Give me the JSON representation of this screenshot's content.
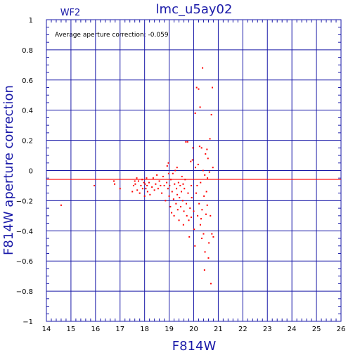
{
  "chart_data": {
    "type": "scatter",
    "title": "lmc_u5ay02",
    "chip_label": "WF2",
    "annotation": "Average aperture correction: -0.059",
    "xlabel": "F814W",
    "ylabel": "F814W aperture correction",
    "xlim": [
      14,
      26
    ],
    "ylim": [
      -1,
      1
    ],
    "x_ticks": [
      "14",
      "15",
      "16",
      "17",
      "18",
      "19",
      "20",
      "21",
      "22",
      "23",
      "24",
      "25",
      "26"
    ],
    "y_ticks": [
      "1",
      "0.8",
      "0.6",
      "0.4",
      "0.2",
      "0",
      "−0.2",
      "−0.4",
      "−0.6",
      "−0.8",
      "−1"
    ],
    "grid": true,
    "reference_line": -0.059,
    "colors": {
      "axes": "#1a1aa8",
      "points": "#ff0000",
      "reference": "#ff0000"
    },
    "points": [
      [
        14.6,
        -0.23
      ],
      [
        15.95,
        -0.1
      ],
      [
        16.75,
        -0.07
      ],
      [
        16.78,
        -0.09
      ],
      [
        17.0,
        -0.12
      ],
      [
        17.5,
        -0.14
      ],
      [
        17.55,
        -0.1
      ],
      [
        17.6,
        -0.07
      ],
      [
        17.62,
        -0.09
      ],
      [
        17.68,
        -0.05
      ],
      [
        17.7,
        -0.13
      ],
      [
        17.75,
        -0.07
      ],
      [
        17.8,
        -0.15
      ],
      [
        17.85,
        -0.1
      ],
      [
        17.9,
        -0.06
      ],
      [
        17.92,
        -0.12
      ],
      [
        17.97,
        -0.08
      ],
      [
        18.0,
        -0.17
      ],
      [
        18.02,
        -0.09
      ],
      [
        18.05,
        -0.12
      ],
      [
        18.08,
        -0.05
      ],
      [
        18.1,
        -0.1
      ],
      [
        18.12,
        -0.14
      ],
      [
        18.18,
        -0.08
      ],
      [
        18.22,
        -0.16
      ],
      [
        18.3,
        -0.11
      ],
      [
        18.35,
        -0.05
      ],
      [
        18.4,
        -0.13
      ],
      [
        18.45,
        -0.09
      ],
      [
        18.5,
        -0.03
      ],
      [
        18.55,
        -0.12
      ],
      [
        18.6,
        -0.07
      ],
      [
        18.65,
        -0.1
      ],
      [
        18.7,
        -0.15
      ],
      [
        18.75,
        -0.04
      ],
      [
        18.8,
        -0.1
      ],
      [
        18.85,
        -0.2
      ],
      [
        18.9,
        -0.08
      ],
      [
        18.92,
        0.03
      ],
      [
        18.95,
        -0.12
      ],
      [
        18.97,
        0.05
      ],
      [
        19.0,
        -0.17
      ],
      [
        19.02,
        -0.1
      ],
      [
        19.05,
        -0.24
      ],
      [
        19.07,
        -0.06
      ],
      [
        19.1,
        -0.28
      ],
      [
        19.12,
        -0.14
      ],
      [
        19.15,
        -0.02
      ],
      [
        19.18,
        -0.19
      ],
      [
        19.2,
        -0.3
      ],
      [
        19.22,
        -0.09
      ],
      [
        19.25,
        0.0
      ],
      [
        19.28,
        -0.22
      ],
      [
        19.3,
        -0.12
      ],
      [
        19.32,
        0.02
      ],
      [
        19.35,
        -0.26
      ],
      [
        19.38,
        -0.08
      ],
      [
        19.4,
        -0.33
      ],
      [
        19.42,
        -0.18
      ],
      [
        19.45,
        -0.1
      ],
      [
        19.47,
        -0.24
      ],
      [
        19.5,
        -0.14
      ],
      [
        19.52,
        -0.04
      ],
      [
        19.55,
        -0.2
      ],
      [
        19.6,
        -0.27
      ],
      [
        19.62,
        -0.12
      ],
      [
        19.65,
        -0.06
      ],
      [
        19.68,
        0.19
      ],
      [
        19.7,
        -0.22
      ],
      [
        19.72,
        -0.3
      ],
      [
        19.75,
        0.19
      ],
      [
        19.77,
        -0.15
      ],
      [
        19.8,
        -0.33
      ],
      [
        19.82,
        -0.44
      ],
      [
        19.85,
        -0.25
      ],
      [
        19.88,
        0.06
      ],
      [
        19.9,
        -0.1
      ],
      [
        19.92,
        -0.18
      ],
      [
        19.95,
        0.07
      ],
      [
        19.97,
        0.15
      ],
      [
        20.0,
        -0.27
      ],
      [
        20.02,
        -0.39
      ],
      [
        20.05,
        -0.5
      ],
      [
        20.07,
        0.02
      ],
      [
        20.1,
        -0.15
      ],
      [
        20.12,
        0.55
      ],
      [
        20.14,
        -0.1
      ],
      [
        20.16,
        -0.3
      ],
      [
        20.18,
        0.04
      ],
      [
        20.2,
        0.54
      ],
      [
        20.22,
        -0.22
      ],
      [
        20.24,
        0.16
      ],
      [
        20.26,
        0.42
      ],
      [
        20.28,
        -0.08
      ],
      [
        20.3,
        -0.32
      ],
      [
        20.32,
        0.15
      ],
      [
        20.34,
        -0.26
      ],
      [
        20.36,
        0.68
      ],
      [
        20.38,
        0.0
      ],
      [
        20.4,
        -0.42
      ],
      [
        20.42,
        -0.17
      ],
      [
        20.44,
        -0.66
      ],
      [
        20.46,
        -0.54
      ],
      [
        20.48,
        0.11
      ],
      [
        20.5,
        -0.29
      ],
      [
        20.52,
        -0.14
      ],
      [
        20.54,
        0.14
      ],
      [
        20.56,
        -0.05
      ],
      [
        20.58,
        0.08
      ],
      [
        20.6,
        -0.58
      ],
      [
        20.62,
        -0.48
      ],
      [
        20.64,
        -0.01
      ],
      [
        20.66,
        0.21
      ],
      [
        20.68,
        -0.3
      ],
      [
        20.7,
        -0.75
      ],
      [
        20.72,
        0.37
      ],
      [
        20.74,
        -0.42
      ],
      [
        20.76,
        0.55
      ],
      [
        20.78,
        0.02
      ],
      [
        20.8,
        -0.44
      ],
      [
        19.58,
        -0.36
      ],
      [
        19.9,
        -0.31
      ],
      [
        20.06,
        0.38
      ],
      [
        20.27,
        -0.36
      ],
      [
        20.45,
        -0.03
      ],
      [
        20.55,
        -0.23
      ],
      [
        19.33,
        -0.16
      ],
      [
        19.57,
        -0.09
      ],
      [
        18.98,
        -0.02
      ],
      [
        20.33,
        -0.45
      ]
    ]
  }
}
